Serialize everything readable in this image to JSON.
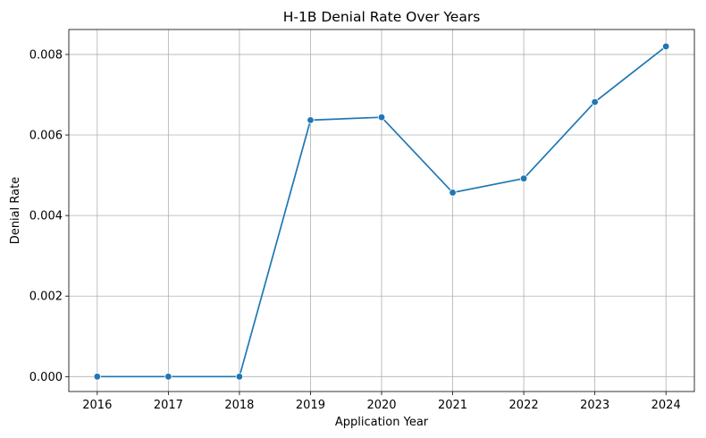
{
  "chart_data": {
    "type": "line",
    "title": "H-1B Denial Rate Over Years",
    "xlabel": "Application Year",
    "ylabel": "Denial Rate",
    "x": [
      "2016",
      "2017",
      "2018",
      "2019",
      "2020",
      "2021",
      "2022",
      "2023",
      "2024"
    ],
    "series": [
      {
        "values": [
          0.0,
          0.0,
          0.0,
          0.00637,
          0.00644,
          0.00457,
          0.00492,
          0.00682,
          0.0082
        ],
        "color": "#1f77b4",
        "marker": "circle"
      }
    ],
    "xlim": [
      2015.6,
      2024.4
    ],
    "ylim": [
      -0.00037,
      0.00862
    ],
    "yticks": [
      "0.000",
      "0.002",
      "0.004",
      "0.006",
      "0.008"
    ],
    "ytick_values": [
      0,
      0.002,
      0.004,
      0.006,
      0.008
    ],
    "grid": true,
    "legend": "none"
  }
}
